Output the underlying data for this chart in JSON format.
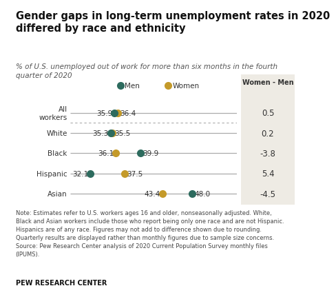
{
  "title": "Gender gaps in long-term unemployment rates in 2020\ndiffered by race and ethnicity",
  "subtitle": "% of U.S. unemployed out of work for more than six months in the fourth\nquarter of 2020",
  "categories": [
    "All\nworkers",
    "White",
    "Black",
    "Hispanic",
    "Asian"
  ],
  "men_values": [
    35.9,
    35.3,
    39.9,
    32.1,
    48.0
  ],
  "women_values": [
    36.4,
    35.5,
    36.1,
    37.5,
    43.4
  ],
  "differences": [
    "0.5",
    "0.2",
    "-3.8",
    "5.4",
    "-4.5"
  ],
  "men_color": "#2d6b5e",
  "women_color": "#c49a2a",
  "line_color": "#aaaaaa",
  "note_text": "Note: Estimates refer to U.S. workers ages 16 and older, nonseasonally adjusted. White,\nBlack and Asian workers include those who report being only one race and are not Hispanic.\nHispanics are of any race. Figures may not add to difference shown due to rounding.\nQuarterly results are displayed rather than monthly figures due to sample size concerns.\nSource: Pew Research Center analysis of 2020 Current Population Survey monthly files\n(IPUMS).",
  "footer": "PEW RESEARCH CENTER",
  "diff_col_label": "Women - Men",
  "legend_men": "Men",
  "legend_women": "Women",
  "xlim": [
    29,
    55
  ],
  "diff_bg_color": "#eeebe4",
  "dotted_line_color": "#aaaaaa",
  "background_color": "#ffffff",
  "title_fontsize": 10.5,
  "subtitle_fontsize": 7.5,
  "label_fontsize": 7.5,
  "note_fontsize": 6.0,
  "footer_fontsize": 7.0,
  "diff_fontsize": 8.5,
  "marker_size": 7
}
